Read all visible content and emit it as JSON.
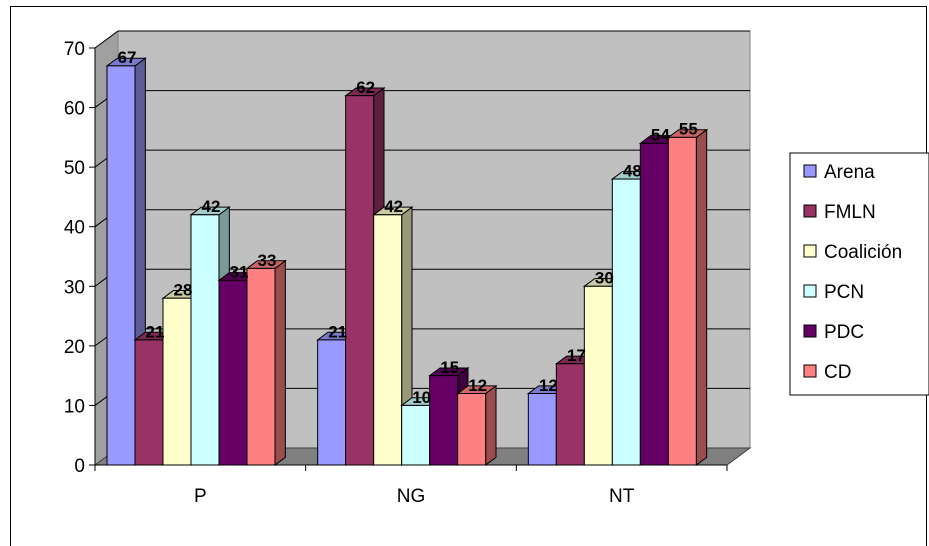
{
  "chart_data": {
    "type": "bar",
    "title": "",
    "xlabel": "",
    "ylabel": "",
    "categories": [
      "P",
      "NG",
      "NT"
    ],
    "ylim": [
      0,
      70
    ],
    "yticks": [
      0,
      10,
      20,
      30,
      40,
      50,
      60,
      70
    ],
    "grid": true,
    "legend_position": "right",
    "series": [
      {
        "name": "Arena",
        "color": "#9999ff",
        "values": [
          67,
          21,
          12
        ]
      },
      {
        "name": "FMLN",
        "color": "#993366",
        "values": [
          21,
          62,
          17
        ]
      },
      {
        "name": "Coalición",
        "color": "#ffffcc",
        "values": [
          28,
          42,
          30
        ]
      },
      {
        "name": "PCN",
        "color": "#ccffff",
        "values": [
          42,
          10,
          48
        ]
      },
      {
        "name": "PDC",
        "color": "#660066",
        "values": [
          31,
          15,
          54
        ]
      },
      {
        "name": "CD",
        "color": "#ff8080",
        "values": [
          33,
          12,
          55
        ]
      }
    ]
  }
}
